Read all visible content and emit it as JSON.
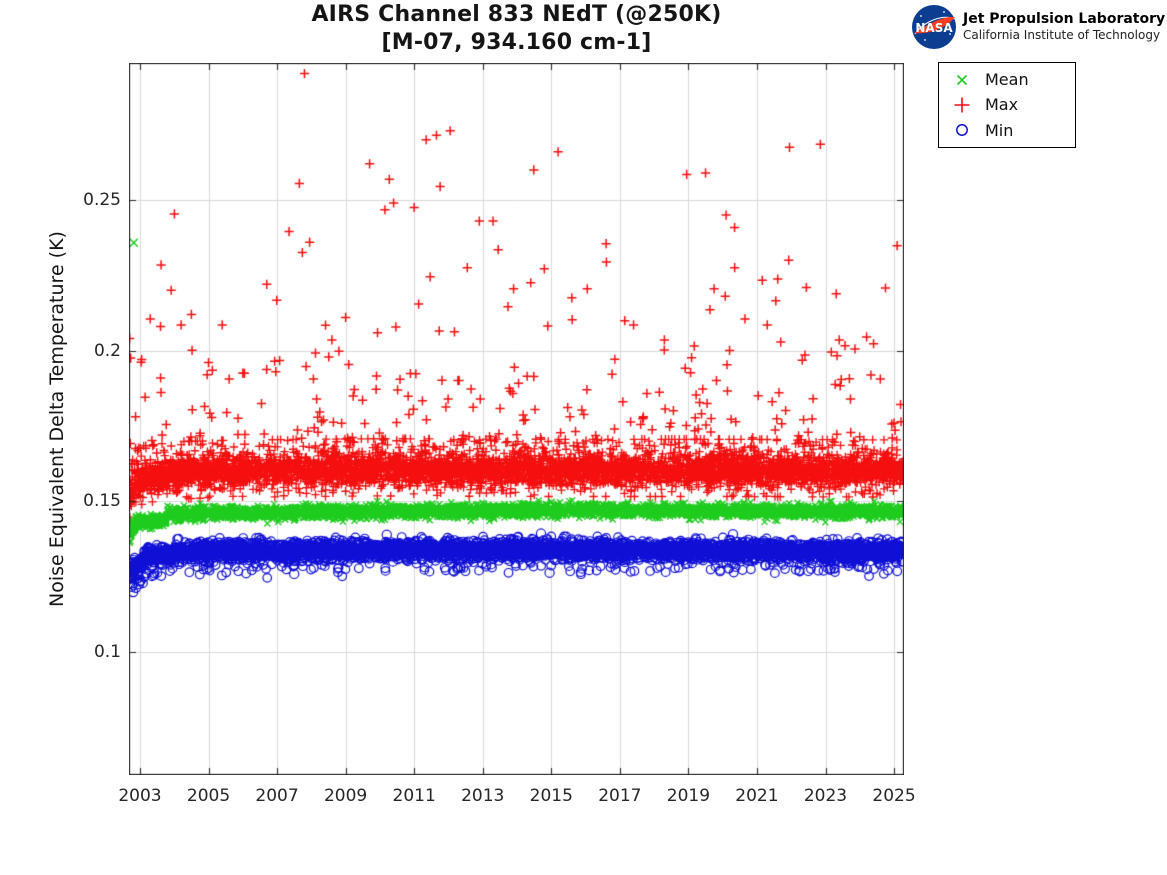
{
  "branding": {
    "nasa_text": "NASA",
    "org_name": "Jet Propulsion Laboratory",
    "org_sub": "California Institute of Technology",
    "logo_blue": "#0B3D91",
    "logo_red": "#FC3D21"
  },
  "chart_data": {
    "type": "scatter",
    "title": "AIRS Channel 833 NEdT (@250K)",
    "subtitle": "[M-07, 934.160 cm-1]",
    "xlabel": "",
    "ylabel": "Noise Equivalent Delta Temperature (K)",
    "xlim": [
      2002.68,
      2025.29
    ],
    "ylim": [
      0.059,
      0.2955
    ],
    "xticks": [
      2003,
      2005,
      2007,
      2009,
      2011,
      2013,
      2015,
      2017,
      2019,
      2021,
      2023,
      2025
    ],
    "xtick_labels": [
      "2003",
      "2005",
      "2007",
      "2009",
      "2011",
      "2013",
      "2015",
      "2017",
      "2019",
      "2021",
      "2023",
      "2025"
    ],
    "yticks": [
      0.1,
      0.15,
      0.2,
      0.25
    ],
    "ytick_labels": [
      "0.1",
      "0.15",
      "0.2",
      "0.25"
    ],
    "grid": true,
    "grid_color": "#d9d9d9",
    "axis_color": "#262626",
    "legend_position": "outside-top-right",
    "seed": 20250833,
    "x_data_range": [
      2002.7,
      2025.26
    ],
    "series": [
      {
        "name": "Max",
        "marker": "+",
        "color": "#f50f0f",
        "n": 5200,
        "band": [
          [
            2002.7,
            0.15
          ],
          [
            2002.85,
            0.1555
          ],
          [
            2003.1,
            0.1578
          ],
          [
            2004.0,
            0.1592
          ],
          [
            2006.0,
            0.1598
          ],
          [
            2010.0,
            0.1602
          ],
          [
            2015.0,
            0.16
          ],
          [
            2020.0,
            0.16
          ],
          [
            2025.26,
            0.1598
          ]
        ],
        "jitter": {
          "sigma": 0.0024,
          "sigma2": 0.0048,
          "p2": 0.2,
          "fuzz_p": 0.12,
          "fuzz_scale": 0.004,
          "clip_lo": 0.0085,
          "clip_hi": 0.0105
        },
        "outlier_gen": {
          "n": 250,
          "min_offset": 0.0075,
          "scale": 0.017,
          "cap": 0.282
        },
        "outliers": [
          [
            2002.7,
            0.204
          ],
          [
            2002.73,
            0.1975
          ],
          [
            2002.7,
            0.1445
          ],
          [
            2002.72,
            0.151
          ],
          [
            2003.05,
            0.197
          ],
          [
            2003.15,
            0.1845
          ],
          [
            2003.3,
            0.2105
          ],
          [
            2003.6,
            0.208
          ],
          [
            2004.2,
            0.2085
          ],
          [
            2004.5,
            0.212
          ],
          [
            2005.0,
            0.196
          ],
          [
            2005.4,
            0.2085
          ],
          [
            2006.0,
            0.1925
          ],
          [
            2006.7,
            0.222
          ],
          [
            2007.35,
            0.2395
          ],
          [
            2007.65,
            0.2555
          ],
          [
            2007.8,
            0.292
          ],
          [
            2007.95,
            0.236
          ],
          [
            2008.6,
            0.2035
          ],
          [
            2009.0,
            0.211
          ],
          [
            2009.7,
            0.262
          ],
          [
            2010.4,
            0.249
          ],
          [
            2011.0,
            0.2475
          ],
          [
            2011.35,
            0.27
          ],
          [
            2011.65,
            0.2715
          ],
          [
            2012.05,
            0.273
          ],
          [
            2012.55,
            0.2275
          ],
          [
            2012.9,
            0.243
          ],
          [
            2013.3,
            0.243
          ],
          [
            2013.45,
            0.2335
          ],
          [
            2013.9,
            0.2205
          ],
          [
            2014.4,
            0.2225
          ],
          [
            2015.2,
            0.266
          ],
          [
            2015.6,
            0.2175
          ],
          [
            2016.05,
            0.2205
          ],
          [
            2016.6,
            0.2355
          ],
          [
            2017.4,
            0.2085
          ],
          [
            2018.3,
            0.2035
          ],
          [
            2018.95,
            0.2585
          ],
          [
            2019.5,
            0.259
          ],
          [
            2019.75,
            0.2205
          ],
          [
            2020.1,
            0.245
          ],
          [
            2020.35,
            0.2275
          ],
          [
            2020.65,
            0.2105
          ],
          [
            2021.3,
            0.2085
          ],
          [
            2021.55,
            0.2165
          ],
          [
            2021.95,
            0.2675
          ],
          [
            2022.4,
            0.1985
          ],
          [
            2022.85,
            0.2685
          ],
          [
            2023.4,
            0.2035
          ],
          [
            2024.2,
            0.2045
          ],
          [
            2024.6,
            0.1905
          ]
        ]
      },
      {
        "name": "Mean",
        "marker": "x",
        "color": "#1ecc1e",
        "n": 4000,
        "band": [
          [
            2002.7,
            0.1365
          ],
          [
            2002.78,
            0.1412
          ],
          [
            2002.9,
            0.1428
          ],
          [
            2003.05,
            0.1432
          ],
          [
            2003.77,
            0.1433
          ],
          [
            2003.8,
            0.1458
          ],
          [
            2005.0,
            0.1461
          ],
          [
            2008.0,
            0.1463
          ],
          [
            2012.0,
            0.1466
          ],
          [
            2016.0,
            0.147
          ],
          [
            2019.0,
            0.1468
          ],
          [
            2022.0,
            0.1464
          ],
          [
            2025.26,
            0.1466
          ]
        ],
        "jitter": {
          "sigma": 0.0008,
          "uniform": 0.0012
        },
        "outliers": [
          [
            2002.82,
            0.2358
          ]
        ]
      },
      {
        "name": "Min",
        "marker": "o",
        "color": "#0f0fd6",
        "n": 4600,
        "band": [
          [
            2002.7,
            0.1245
          ],
          [
            2002.8,
            0.1272
          ],
          [
            2002.95,
            0.129
          ],
          [
            2003.2,
            0.1318
          ],
          [
            2003.8,
            0.1322
          ],
          [
            2004.2,
            0.1332
          ],
          [
            2008.0,
            0.1334
          ],
          [
            2012.0,
            0.1336
          ],
          [
            2016.0,
            0.1338
          ],
          [
            2020.0,
            0.1334
          ],
          [
            2025.26,
            0.1332
          ]
        ],
        "jitter": {
          "sigma": 0.0016,
          "clip": 0.0045
        },
        "low_tail": {
          "p": 0.035,
          "offset": -0.0058,
          "sigma": 0.0012
        },
        "outliers": [
          [
            2002.76,
            0.1215
          ],
          [
            2002.8,
            0.1198
          ],
          [
            2002.88,
            0.1212
          ],
          [
            2002.97,
            0.1224
          ],
          [
            2003.08,
            0.1228
          ],
          [
            2003.5,
            0.1262
          ],
          [
            2007.5,
            0.1258
          ],
          [
            2010.2,
            0.1388
          ],
          [
            2014.7,
            0.1392
          ],
          [
            2014.95,
            0.1262
          ],
          [
            2020.3,
            0.139
          ],
          [
            2022.5,
            0.1268
          ]
        ]
      }
    ]
  },
  "legend": {
    "entries": [
      {
        "label": "Mean",
        "marker": "x"
      },
      {
        "label": "Max",
        "marker": "+"
      },
      {
        "label": "Min",
        "marker": "o"
      }
    ]
  }
}
